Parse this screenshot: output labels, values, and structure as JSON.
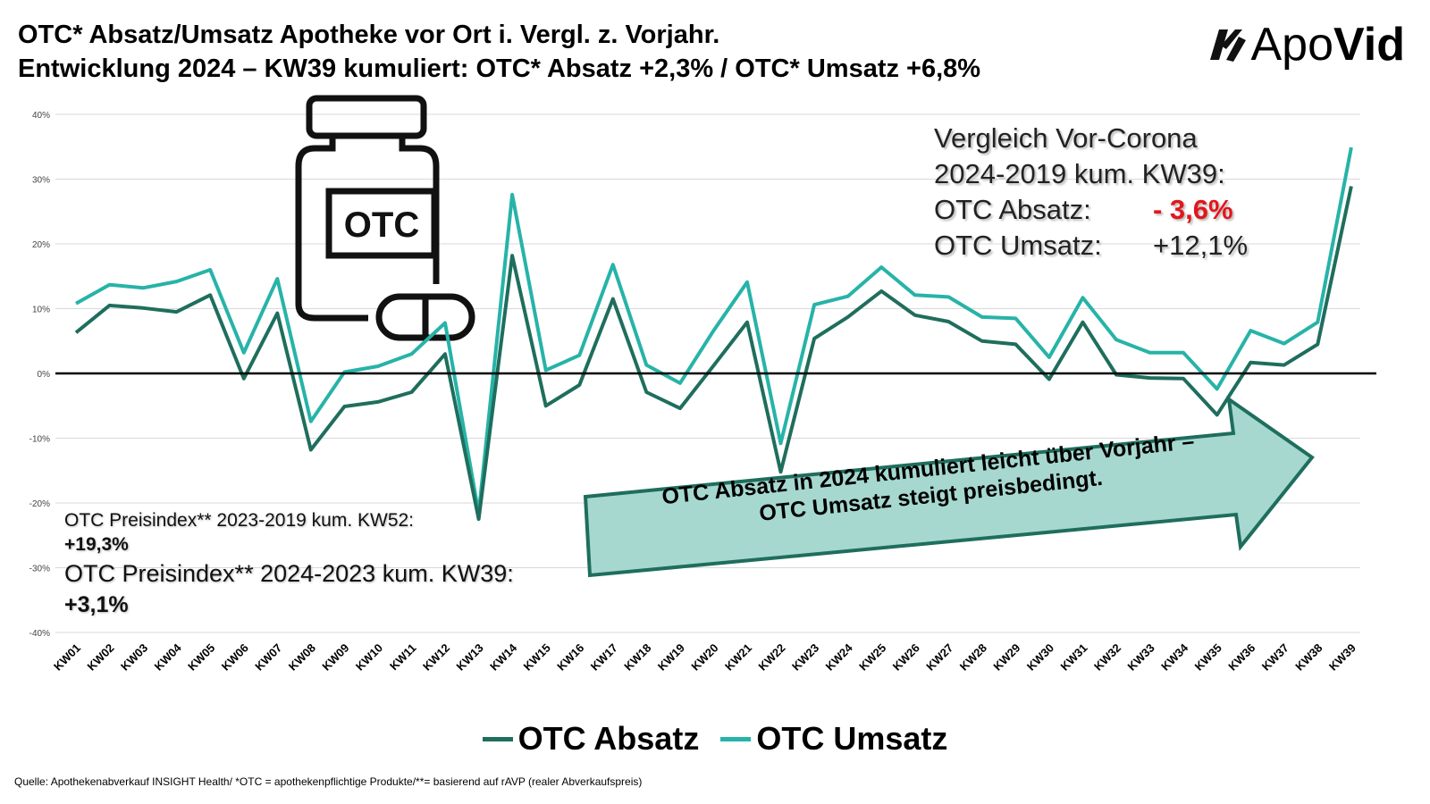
{
  "title": {
    "line1": "OTC* Absatz/Umsatz Apotheke vor Ort i. Vergl. z. Vorjahr.",
    "line2": "Entwicklung 2024 – KW39 kumuliert: OTC* Absatz +2,3% / OTC* Umsatz +6,8%"
  },
  "logo": {
    "text_light": "Apo",
    "text_bold": "Vid"
  },
  "icon": {
    "label": "OTC"
  },
  "compare": {
    "line1": "Vergleich Vor-Corona",
    "line2": "2024-2019 kum. KW39:",
    "absatz_label": "OTC Absatz:",
    "absatz_value": "- 3,6%",
    "umsatz_label": "OTC Umsatz:",
    "umsatz_value": "+12,1%"
  },
  "preisindex": {
    "line1": "OTC Preisindex** 2023-2019 kum. KW52:",
    "value1": "+19,3%",
    "line2": "OTC Preisindex** 2024-2023 kum. KW39:",
    "value2": "+3,1%"
  },
  "arrow_text": {
    "line1": "OTC Absatz in 2024 kumuliert leicht über Vorjahr –",
    "line2": "OTC Umsatz steigt preisbedingt."
  },
  "source": "Quelle: Apothekenabverkauf INSIGHT Health/ *OTC = apothekenpflichtige Produkte/**= basierend auf rAVP (realer Abverkaufspreis)",
  "colors": {
    "absatz": "#1f6e5d",
    "umsatz": "#27b3a8",
    "negative": "#e3161b",
    "arrow_fill": "#a6d8d0",
    "arrow_stroke": "#1f6e5d"
  },
  "chart_data": {
    "type": "line",
    "title": "",
    "xlabel": "",
    "ylabel": "",
    "ylim": [
      -40,
      40
    ],
    "yticks": [
      "40%",
      "30%",
      "20%",
      "10%",
      "0%",
      "-10%",
      "-20%",
      "-30%",
      "-40%"
    ],
    "categories": [
      "KW01",
      "KW02",
      "KW03",
      "KW04",
      "KW05",
      "KW06",
      "KW07",
      "KW08",
      "KW09",
      "KW10",
      "KW11",
      "KW12",
      "KW13",
      "KW14",
      "KW15",
      "KW16",
      "KW17",
      "KW18",
      "KW19",
      "KW20",
      "KW21",
      "KW22",
      "KW23",
      "KW24",
      "KW25",
      "KW26",
      "KW27",
      "KW28",
      "KW29",
      "KW30",
      "KW31",
      "KW32",
      "KW33",
      "KW34",
      "KW35",
      "KW36",
      "KW37",
      "KW38",
      "KW39"
    ],
    "series": [
      {
        "name": "OTC Absatz",
        "values": [
          6.3,
          10.5,
          10.1,
          9.5,
          12.1,
          -0.8,
          9.3,
          -11.8,
          -5.1,
          -4.4,
          -2.9,
          3.0,
          -22.5,
          18.2,
          -5.0,
          -1.8,
          11.5,
          -2.9,
          -5.4,
          1.2,
          7.9,
          -15.2,
          5.4,
          8.7,
          12.7,
          9.0,
          8.0,
          5.0,
          4.5,
          -0.9,
          7.9,
          -0.2,
          -0.7,
          -0.8,
          -6.4,
          1.7,
          1.3,
          4.5,
          28.9
        ]
      },
      {
        "name": "OTC Umsatz",
        "values": [
          10.8,
          13.7,
          13.2,
          14.2,
          16.0,
          3.2,
          14.6,
          -7.4,
          0.2,
          1.1,
          3.0,
          7.8,
          -21.6,
          27.6,
          0.5,
          2.8,
          16.8,
          1.3,
          -1.5,
          6.6,
          14.1,
          -10.8,
          10.6,
          11.9,
          16.4,
          12.1,
          11.8,
          8.7,
          8.5,
          2.5,
          11.7,
          5.2,
          3.2,
          3.2,
          -2.4,
          6.6,
          4.6,
          7.9,
          34.9
        ]
      }
    ],
    "legend": [
      "OTC Absatz",
      "OTC Umsatz"
    ],
    "legend_position": "bottom",
    "grid": true
  }
}
